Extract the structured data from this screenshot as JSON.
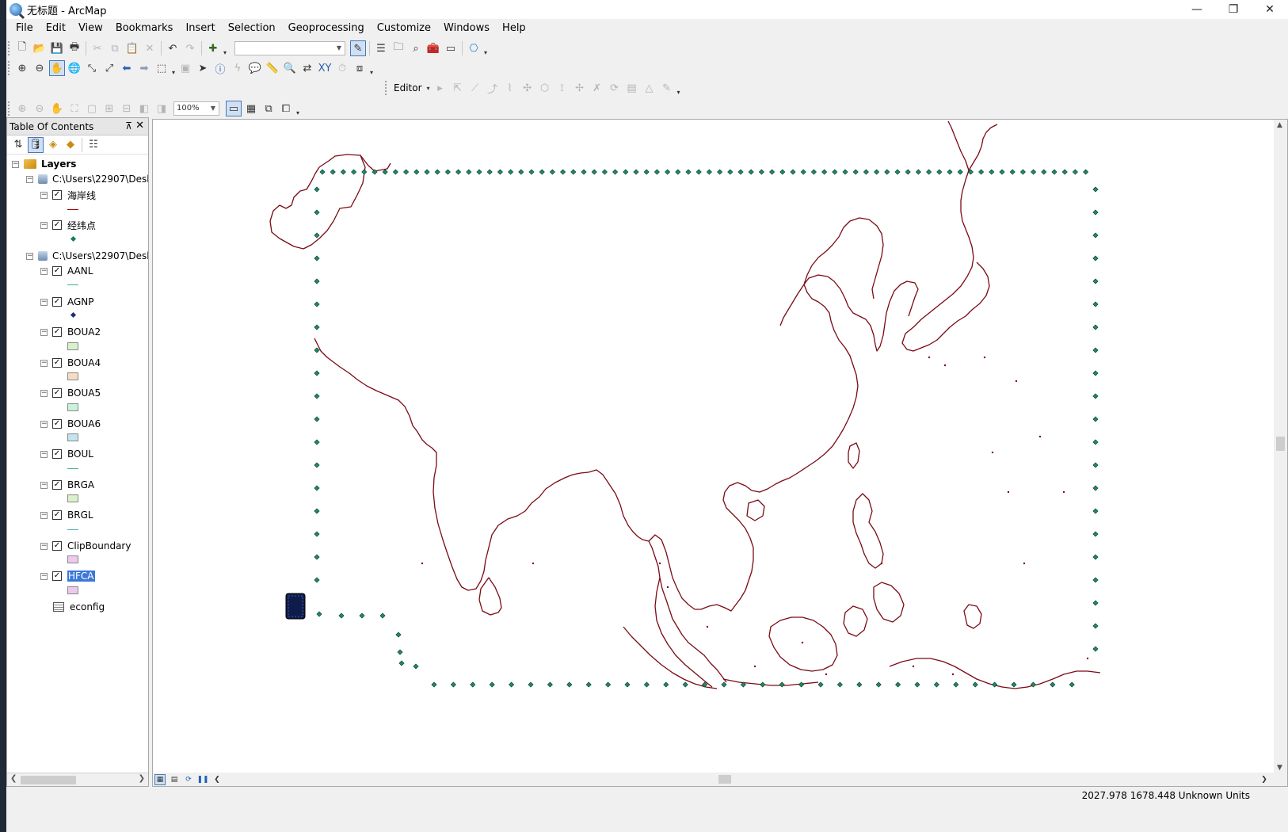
{
  "window": {
    "title": "无标题 - ArcMap",
    "minimize": "—",
    "restore": "❐",
    "close": "✕"
  },
  "menu": [
    "File",
    "Edit",
    "View",
    "Bookmarks",
    "Insert",
    "Selection",
    "Geoprocessing",
    "Customize",
    "Windows",
    "Help"
  ],
  "toolbars": {
    "scale_combo_value": "",
    "editor_label": "Editor",
    "zoom_combo_value": "100%"
  },
  "toc": {
    "title": "Table Of Contents",
    "pin": "ㅁ",
    "close": "✕",
    "root": "Layers",
    "groups": [
      {
        "path": "C:\\Users\\22907\\Desk",
        "layers": [
          {
            "name": "海岸线",
            "symbol": "line",
            "color": "#a40000"
          },
          {
            "name": "经纬点",
            "symbol": "dot",
            "color": "#1c7a5c"
          }
        ]
      },
      {
        "path": "C:\\Users\\22907\\Desk",
        "layers": [
          {
            "name": "AANL",
            "symbol": "line",
            "color": "#3fb08f"
          },
          {
            "name": "AGNP",
            "symbol": "dot",
            "color": "#1f2d7a"
          },
          {
            "name": "BOUA2",
            "symbol": "rect",
            "color": "#d9f2c9"
          },
          {
            "name": "BOUA4",
            "symbol": "rect",
            "color": "#f7dcc2"
          },
          {
            "name": "BOUA5",
            "symbol": "rect",
            "color": "#c9f2dc"
          },
          {
            "name": "BOUA6",
            "symbol": "rect",
            "color": "#c2e4f0"
          },
          {
            "name": "BOUL",
            "symbol": "line",
            "color": "#3fb08f"
          },
          {
            "name": "BRGA",
            "symbol": "rect",
            "color": "#d9f2c9"
          },
          {
            "name": "BRGL",
            "symbol": "line",
            "color": "#49b7b0"
          },
          {
            "name": "ClipBoundary",
            "symbol": "rect",
            "color": "#edc9ee"
          },
          {
            "name": "HFCA",
            "symbol": "rect",
            "color": "#edc9ee",
            "selected": true
          }
        ]
      }
    ],
    "table": "econfig"
  },
  "status": {
    "coordinates": "2027.978  1678.448 Unknown Units"
  },
  "map": {
    "coast_color": "#7a0a14",
    "point_color": "#1d8a6b"
  }
}
